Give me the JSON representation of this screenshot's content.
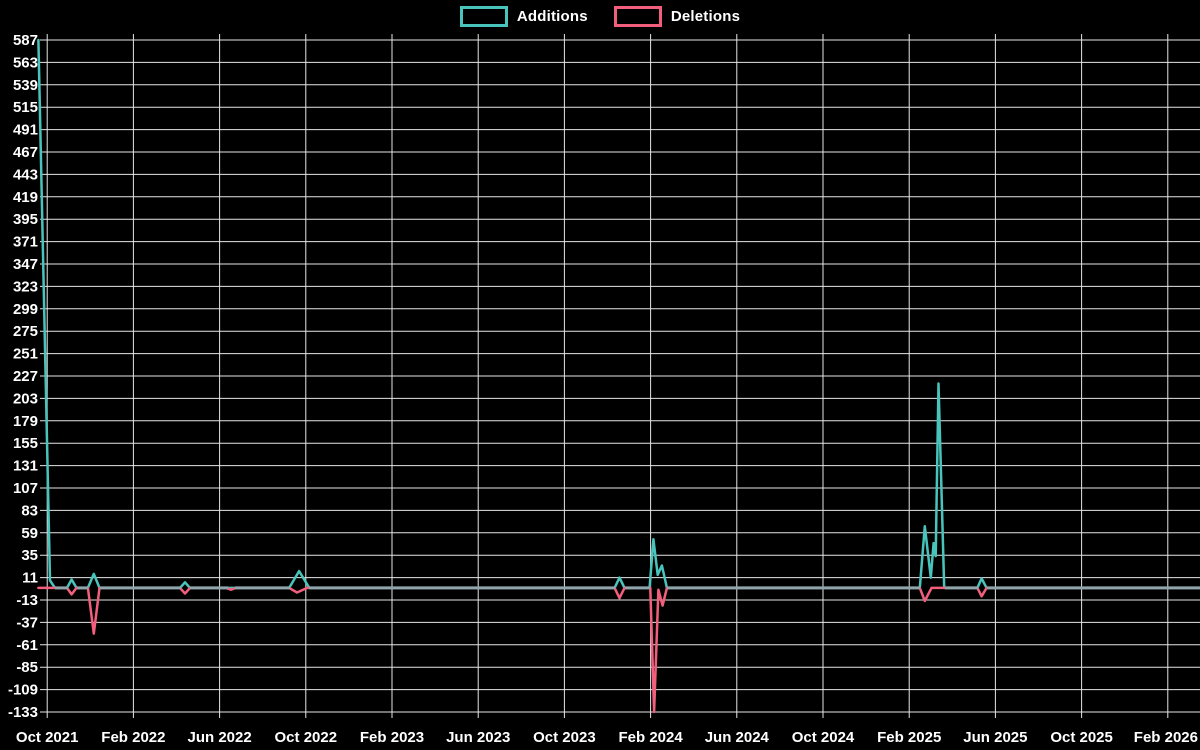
{
  "legend": {
    "items": [
      {
        "label": "Additions",
        "color": "#48c4bc"
      },
      {
        "label": "Deletions",
        "color": "#f25f7c"
      }
    ]
  },
  "chart_data": {
    "type": "line",
    "title": "",
    "xlabel": "",
    "ylabel": "",
    "legend_position": "top-center",
    "grid": true,
    "background": "#000000",
    "grid_color": "#e6e6e6",
    "zero_line_color": "#8ea6ac",
    "tick_text_color": "#ffffff",
    "ylim": [
      -133,
      587
    ],
    "y_tick_values": [
      587,
      563,
      539,
      515,
      491,
      467,
      443,
      419,
      395,
      371,
      347,
      323,
      299,
      275,
      251,
      227,
      203,
      179,
      155,
      131,
      107,
      83,
      59,
      35,
      11,
      -13,
      -37,
      -61,
      -85,
      -109,
      -133
    ],
    "x_tick_labels": [
      "Oct 2021",
      "Feb 2022",
      "Jun 2022",
      "Oct 2022",
      "Feb 2023",
      "Jun 2023",
      "Oct 2023",
      "Feb 2024",
      "Jun 2024",
      "Oct 2024",
      "Feb 2025",
      "Jun 2025",
      "Oct 2025",
      "Feb 2026"
    ],
    "series": [
      {
        "name": "Additions",
        "color": "#48c4bc",
        "points": [
          [
            "2021-09-19",
            587
          ],
          [
            "2021-10-05",
            8
          ],
          [
            "2021-10-12",
            0
          ],
          [
            "2021-10-29",
            0
          ],
          [
            "2021-11-05",
            9
          ],
          [
            "2021-11-12",
            0
          ],
          [
            "2021-11-28",
            0
          ],
          [
            "2021-12-06",
            15
          ],
          [
            "2021-12-14",
            0
          ],
          [
            "2022-04-06",
            0
          ],
          [
            "2022-04-13",
            6
          ],
          [
            "2022-04-20",
            0
          ],
          [
            "2022-09-08",
            0
          ],
          [
            "2022-09-22",
            18
          ],
          [
            "2022-10-06",
            0
          ],
          [
            "2023-12-11",
            0
          ],
          [
            "2023-12-18",
            11
          ],
          [
            "2023-12-25",
            0
          ],
          [
            "2024-01-30",
            0
          ],
          [
            "2024-02-05",
            52
          ],
          [
            "2024-02-11",
            14
          ],
          [
            "2024-02-17",
            24
          ],
          [
            "2024-02-24",
            0
          ],
          [
            "2025-02-16",
            0
          ],
          [
            "2025-02-23",
            66
          ],
          [
            "2025-03-01",
            11
          ],
          [
            "2025-03-05",
            48
          ],
          [
            "2025-03-08",
            34
          ],
          [
            "2025-03-12",
            219
          ],
          [
            "2025-03-20",
            0
          ],
          [
            "2025-05-06",
            0
          ],
          [
            "2025-05-12",
            10
          ],
          [
            "2025-05-19",
            0
          ],
          [
            "2026-03-16",
            0
          ]
        ]
      },
      {
        "name": "Deletions",
        "color": "#f25f7c",
        "points": [
          [
            "2021-09-19",
            0
          ],
          [
            "2021-10-29",
            0
          ],
          [
            "2021-11-05",
            -7
          ],
          [
            "2021-11-12",
            0
          ],
          [
            "2021-11-28",
            0
          ],
          [
            "2021-12-06",
            -49
          ],
          [
            "2021-12-14",
            0
          ],
          [
            "2022-04-06",
            0
          ],
          [
            "2022-04-13",
            -6
          ],
          [
            "2022-04-20",
            0
          ],
          [
            "2022-06-10",
            0
          ],
          [
            "2022-06-17",
            -2
          ],
          [
            "2022-06-24",
            0
          ],
          [
            "2022-09-08",
            0
          ],
          [
            "2022-09-19",
            -5
          ],
          [
            "2022-10-03",
            0
          ],
          [
            "2023-12-11",
            0
          ],
          [
            "2023-12-18",
            -11
          ],
          [
            "2023-12-25",
            0
          ],
          [
            "2024-01-31",
            0
          ],
          [
            "2024-02-06",
            -133
          ],
          [
            "2024-02-12",
            -2
          ],
          [
            "2024-02-18",
            -19
          ],
          [
            "2024-02-24",
            0
          ],
          [
            "2025-02-16",
            0
          ],
          [
            "2025-02-23",
            -14
          ],
          [
            "2025-03-02",
            0
          ],
          [
            "2025-05-06",
            0
          ],
          [
            "2025-05-12",
            -9
          ],
          [
            "2025-05-19",
            0
          ],
          [
            "2026-03-16",
            0
          ]
        ]
      }
    ]
  }
}
